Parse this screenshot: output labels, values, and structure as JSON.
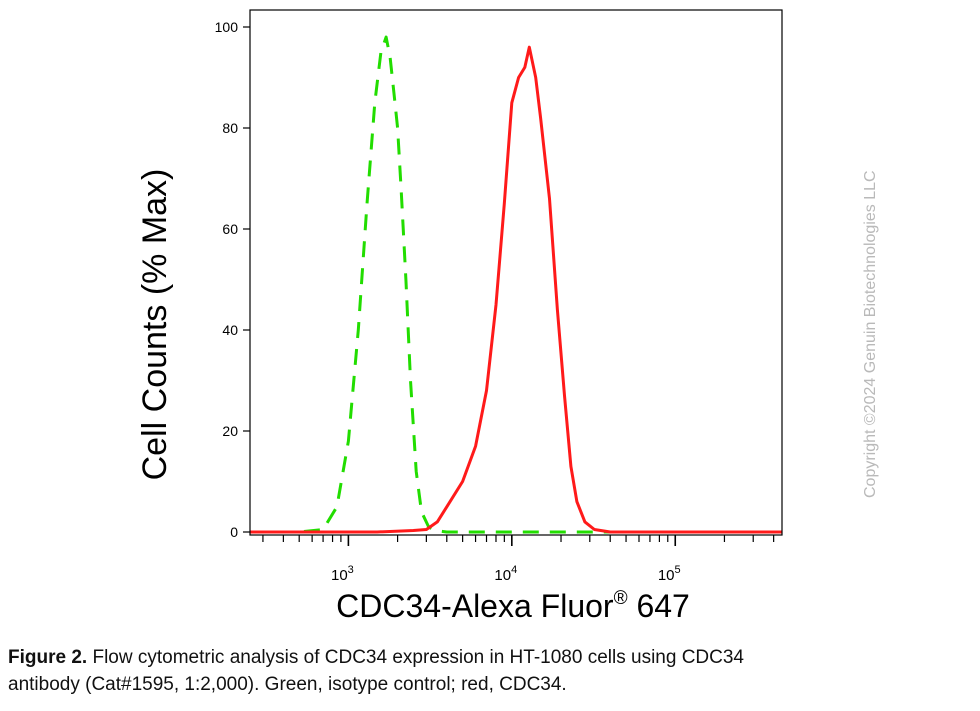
{
  "chart_data": {
    "type": "line",
    "ylabel": "Cell Counts (% Max)",
    "xlabel": "CDC34-Alexa Fluor",
    "xlabel_superscript": "®",
    "xlabel_suffix": " 647",
    "x_scale": "log",
    "xlim": [
      250,
      450000
    ],
    "ylim": [
      0,
      100
    ],
    "yticks": [
      0,
      20,
      40,
      60,
      80,
      100
    ],
    "xticks": [
      {
        "value": 1000,
        "base": "10",
        "exp": "3"
      },
      {
        "value": 10000,
        "base": "10",
        "exp": "4"
      },
      {
        "value": 100000,
        "base": "10",
        "exp": "5"
      }
    ],
    "grid": false,
    "series": [
      {
        "name": "isotype control",
        "color": "#22dd00",
        "style": "dashed",
        "points": [
          [
            250,
            0
          ],
          [
            500,
            0
          ],
          [
            700,
            0.5
          ],
          [
            850,
            5
          ],
          [
            1000,
            18
          ],
          [
            1150,
            40
          ],
          [
            1300,
            65
          ],
          [
            1450,
            85
          ],
          [
            1580,
            95
          ],
          [
            1700,
            98
          ],
          [
            1800,
            94
          ],
          [
            1900,
            87
          ],
          [
            2000,
            80
          ],
          [
            2100,
            68
          ],
          [
            2250,
            50
          ],
          [
            2400,
            30
          ],
          [
            2600,
            12
          ],
          [
            2800,
            4
          ],
          [
            3100,
            1
          ],
          [
            3400,
            0.3
          ],
          [
            4000,
            0
          ],
          [
            12000,
            0
          ],
          [
            14000,
            0
          ],
          [
            30000,
            0
          ],
          [
            80000,
            0
          ],
          [
            450000,
            0
          ]
        ]
      },
      {
        "name": "CDC34",
        "color": "#ff1a1a",
        "style": "solid",
        "points": [
          [
            250,
            0
          ],
          [
            1500,
            0
          ],
          [
            2500,
            0.3
          ],
          [
            3000,
            0.5
          ],
          [
            3500,
            2
          ],
          [
            4000,
            5
          ],
          [
            5000,
            10
          ],
          [
            6000,
            17
          ],
          [
            7000,
            28
          ],
          [
            8000,
            45
          ],
          [
            9000,
            65
          ],
          [
            10000,
            85
          ],
          [
            11000,
            90
          ],
          [
            12000,
            92
          ],
          [
            12800,
            96
          ],
          [
            14000,
            90
          ],
          [
            15000,
            82
          ],
          [
            17000,
            66
          ],
          [
            19000,
            44
          ],
          [
            21000,
            27
          ],
          [
            23000,
            13
          ],
          [
            25000,
            6
          ],
          [
            28000,
            2
          ],
          [
            32000,
            0.5
          ],
          [
            40000,
            0
          ],
          [
            450000,
            0
          ]
        ]
      }
    ]
  },
  "watermark": "Copyright ©2024 Genuin Biotechnologies LLC",
  "caption": {
    "label": "Figure 2.",
    "line1": " Flow cytometric analysis of CDC34 expression in HT-1080 cells using CDC34",
    "line2": "antibody (Cat#1595, 1:2,000). Green, isotype control; red, CDC34."
  }
}
